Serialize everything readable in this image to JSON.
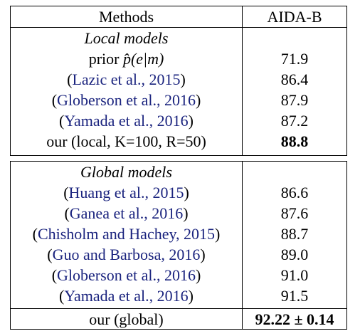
{
  "header": {
    "methods": "Methods",
    "dataset": "AIDA-B"
  },
  "local": {
    "title": "Local models",
    "rows": [
      {
        "pre": "prior ",
        "math": "p̂(e|m)",
        "cite": "",
        "post": "",
        "value": "71.9"
      },
      {
        "pre": "(",
        "cite": "Lazic et al., 2015",
        "post": ")",
        "value": "86.4"
      },
      {
        "pre": "(",
        "cite": "Globerson et al., 2016",
        "post": ")",
        "value": "87.9"
      },
      {
        "pre": "(",
        "cite": "Yamada et al., 2016",
        "post": ")",
        "value": "87.2"
      },
      {
        "pre": "our (local, K=100, R=50)",
        "cite": "",
        "post": "",
        "value": "88.8"
      }
    ]
  },
  "global": {
    "title": "Global models",
    "rows": [
      {
        "pre": "(",
        "cite": "Huang et al., 2015",
        "post": ")",
        "value": "86.6"
      },
      {
        "pre": "(",
        "cite": "Ganea et al., 2016",
        "post": ")",
        "value": "87.6"
      },
      {
        "pre": "(",
        "cite": "Chisholm and Hachey, 2015",
        "post": ")",
        "value": "88.7"
      },
      {
        "pre": "(",
        "cite": "Guo and Barbosa, 2016",
        "post": ")",
        "value": "89.0"
      },
      {
        "pre": "(",
        "cite": "Globerson et al., 2016",
        "post": ")",
        "value": "91.0"
      },
      {
        "pre": "(",
        "cite": "Yamada et al., 2016",
        "post": ")",
        "value": "91.5"
      },
      {
        "pre": "our (global)",
        "cite": "",
        "post": "",
        "value": "92.22 ± 0.14"
      }
    ]
  },
  "colors": {
    "citation": "#1a237e",
    "text": "#000000"
  }
}
